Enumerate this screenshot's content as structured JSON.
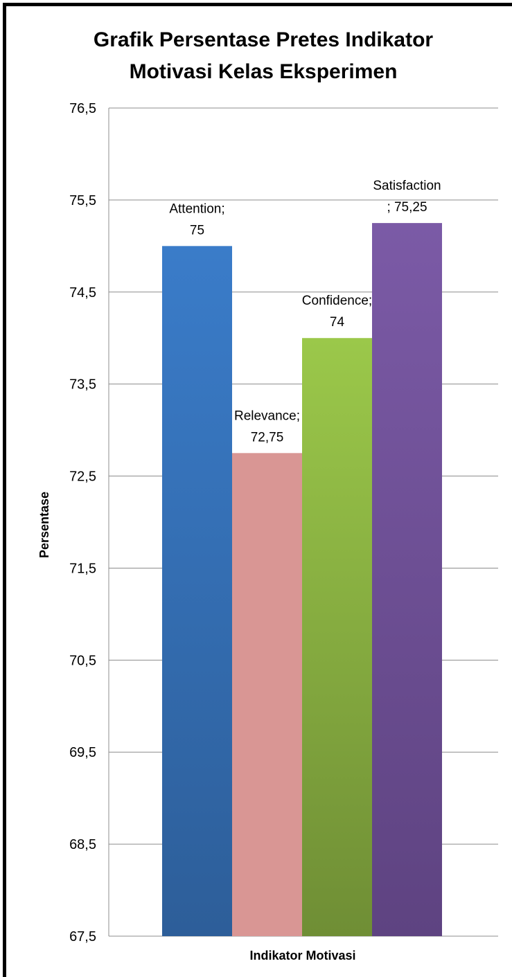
{
  "chart_data": {
    "type": "bar",
    "title": "Grafik Persentase Pretes Indikator Motivasi Kelas Eksperimen",
    "title_lines": [
      "Grafik Persentase Pretes Indikator",
      "Motivasi Kelas Eksperimen"
    ],
    "xlabel": "Indikator  Motivasi",
    "ylabel": "Persentase",
    "ylim": [
      67.5,
      76.5
    ],
    "y_ticks": [
      "67,5",
      "68,5",
      "69,5",
      "70,5",
      "71,5",
      "72,5",
      "73,5",
      "74,5",
      "75,5",
      "76,5"
    ],
    "grid": true,
    "legend": "none",
    "categories": [
      "Indikator  Motivasi"
    ],
    "series": [
      {
        "name": "Attention",
        "values": [
          75
        ],
        "color": "#3A7CC9",
        "color_dark": "#2D5E99",
        "label_lines": [
          "Attention;",
          "75"
        ]
      },
      {
        "name": "Relevance",
        "values": [
          72.75
        ],
        "color": "#D99694",
        "color_dark": "#D99694",
        "label_lines": [
          "Relevance;",
          "72,75"
        ]
      },
      {
        "name": "Confidence",
        "values": [
          74
        ],
        "color": "#9BC84A",
        "color_dark": "#6F8E35",
        "label_lines": [
          "Confidence;",
          "74"
        ]
      },
      {
        "name": "Satisfaction",
        "values": [
          75.25
        ],
        "color": "#7B5AA6",
        "color_dark": "#5E4381",
        "label_lines": [
          "Satisfaction",
          "; 75,25"
        ]
      }
    ]
  }
}
